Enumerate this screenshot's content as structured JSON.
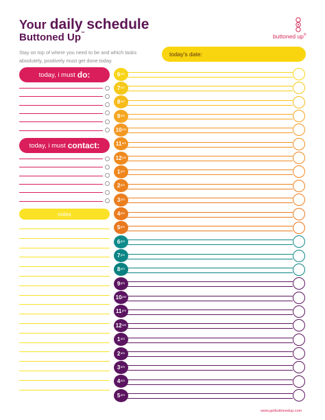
{
  "header": {
    "title_prefix": "Your",
    "title_main": "daily schedule",
    "subtitle": "Buttoned Up",
    "subtitle_mark": "™",
    "intro": "Stay on top of where you need to be and which tasks absolutely, positively must get done today."
  },
  "logo": {
    "text": "buttoned up",
    "mark": "®"
  },
  "date_field": {
    "label": "today's date:"
  },
  "todo": {
    "label_prefix": "today, i must",
    "label_emphasis": "do:",
    "row_count": 6
  },
  "contact": {
    "label_prefix": "today, i must",
    "label_emphasis": "contact:",
    "row_count": 6
  },
  "notes": {
    "label": "notes",
    "row_count": 18
  },
  "schedule": [
    {
      "h": "6",
      "p": "am",
      "c": "#f7d417"
    },
    {
      "h": "7",
      "p": "am",
      "c": "#f6c919"
    },
    {
      "h": "8",
      "p": "am",
      "c": "#f7bb1a"
    },
    {
      "h": "9",
      "p": "am",
      "c": "#f5a622"
    },
    {
      "h": "10",
      "p": "am",
      "c": "#f39823"
    },
    {
      "h": "11",
      "p": "am",
      "c": "#f0901f"
    },
    {
      "h": "12",
      "p": "pm",
      "c": "#ef8a1e"
    },
    {
      "h": "1",
      "p": "pm",
      "c": "#ee861e"
    },
    {
      "h": "2",
      "p": "pm",
      "c": "#ec821f"
    },
    {
      "h": "3",
      "p": "pm",
      "c": "#eb7f1f"
    },
    {
      "h": "4",
      "p": "pm",
      "c": "#ea7b1e"
    },
    {
      "h": "5",
      "p": "pm",
      "c": "#e9781e"
    },
    {
      "h": "6",
      "p": "pm",
      "c": "#0f8a8a"
    },
    {
      "h": "7",
      "p": "pm",
      "c": "#0d8585"
    },
    {
      "h": "8",
      "p": "pm",
      "c": "#0b8080"
    },
    {
      "h": "9",
      "p": "pm",
      "c": "#5b1560"
    },
    {
      "h": "10",
      "p": "pm",
      "c": "#5b1560"
    },
    {
      "h": "11",
      "p": "pm",
      "c": "#5b1560"
    },
    {
      "h": "12",
      "p": "am",
      "c": "#5b1560"
    },
    {
      "h": "1",
      "p": "am",
      "c": "#5b1560"
    },
    {
      "h": "2",
      "p": "am",
      "c": "#5b1560"
    },
    {
      "h": "3",
      "p": "am",
      "c": "#5b1560"
    },
    {
      "h": "4",
      "p": "am",
      "c": "#5b1560"
    },
    {
      "h": "5",
      "p": "am",
      "c": "#5b1560"
    }
  ],
  "colors": {
    "pink": "#d91e5b",
    "plum": "#5c1454",
    "yellow": "#fbe227",
    "gray_line": "#9a9a9a"
  },
  "footer": {
    "url": "www.getbuttonedup.com"
  }
}
